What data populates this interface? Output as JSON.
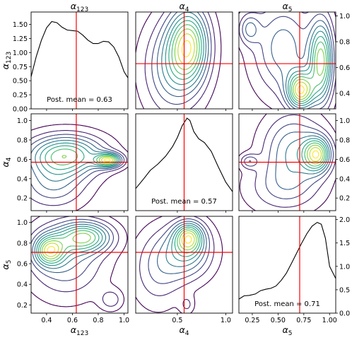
{
  "chart_data": {
    "type": "corner_plot",
    "parameters": [
      {
        "key": "a123",
        "symbol": "α",
        "sub": "123",
        "range": [
          0.28,
          1.03
        ],
        "xticks": [
          0.4,
          0.6,
          0.8,
          1.0
        ],
        "xtick_labels": [
          "0.4",
          "0.6",
          "0.8",
          "1.0"
        ]
      },
      {
        "key": "a4",
        "symbol": "α",
        "sub": "4",
        "range": [
          0.07,
          1.07
        ],
        "xticks": [
          0.5,
          1.0
        ],
        "xtick_labels": [
          "0.5",
          "1.0"
        ]
      },
      {
        "key": "a5",
        "symbol": "α",
        "sub": "5",
        "range": [
          0.12,
          1.06
        ],
        "xticks": [
          0.25,
          0.5,
          0.75,
          1.0
        ],
        "xtick_labels": [
          "0.25",
          "0.50",
          "0.75",
          "1.00"
        ]
      }
    ],
    "posterior_means": [
      0.63,
      0.57,
      0.71
    ],
    "annotations": [
      "Post. mean = 0.63",
      "Post. mean = 0.57",
      "Post. mean = 0.71"
    ],
    "diagonal_density": [
      {
        "ylim": [
          0,
          1.72
        ],
        "yticks": [
          "0.00",
          "0.25",
          "0.50",
          "0.75",
          "1.00",
          "1.25",
          "1.50"
        ],
        "ytick_values": [
          0,
          0.25,
          0.5,
          0.75,
          1.0,
          1.25,
          1.5
        ],
        "x": [
          0.28,
          0.32,
          0.36,
          0.4,
          0.44,
          0.48,
          0.52,
          0.56,
          0.6,
          0.64,
          0.68,
          0.72,
          0.76,
          0.8,
          0.84,
          0.88,
          0.92,
          0.96,
          1.0,
          1.03
        ],
        "y": [
          0.57,
          0.93,
          1.22,
          1.44,
          1.55,
          1.53,
          1.45,
          1.4,
          1.39,
          1.38,
          1.31,
          1.22,
          1.16,
          1.16,
          1.2,
          1.19,
          1.1,
          0.92,
          0.66,
          0.55
        ]
      },
      {
        "ylim": [
          0,
          2.45
        ],
        "yticks": [],
        "ytick_values": [],
        "x": [
          0.07,
          0.15,
          0.22,
          0.3,
          0.38,
          0.45,
          0.5,
          0.55,
          0.6,
          0.63,
          0.67,
          0.72,
          0.78,
          0.85,
          0.92,
          1.0,
          1.07
        ],
        "y": [
          0.56,
          0.8,
          1.02,
          1.18,
          1.38,
          1.62,
          1.85,
          2.15,
          2.34,
          2.28,
          2.0,
          1.82,
          1.72,
          1.5,
          1.12,
          0.72,
          0.48
        ]
      },
      {
        "ylim": [
          0,
          2.07
        ],
        "yticks": [
          "0.0",
          "0.5",
          "1.0",
          "1.5",
          "2.0"
        ],
        "ytick_values": [
          0,
          0.5,
          1.0,
          1.5,
          2.0
        ],
        "x": [
          0.12,
          0.17,
          0.22,
          0.28,
          0.33,
          0.38,
          0.43,
          0.48,
          0.53,
          0.58,
          0.63,
          0.68,
          0.73,
          0.78,
          0.83,
          0.88,
          0.92,
          0.96,
          1.0,
          1.06
        ],
        "y": [
          0.3,
          0.37,
          0.38,
          0.41,
          0.48,
          0.51,
          0.53,
          0.58,
          0.7,
          0.85,
          1.06,
          1.28,
          1.5,
          1.7,
          1.86,
          1.94,
          1.9,
          1.6,
          1.0,
          0.74
        ]
      }
    ],
    "pairs": [
      {
        "row": 0,
        "col": 1,
        "peaks": [
          {
            "x": 0.58,
            "y": 1.4,
            "h": 1.0,
            "sx": 0.07,
            "sy": 0.1
          },
          {
            "x": 0.62,
            "y": 0.78,
            "h": 0.85,
            "sx": 0.14,
            "sy": 0.2
          },
          {
            "x": 0.45,
            "y": 0.6,
            "h": 0.45,
            "sx": 0.2,
            "sy": 0.25
          }
        ]
      },
      {
        "row": 0,
        "col": 2,
        "peaks": [
          {
            "x": 0.72,
            "y": 0.42,
            "h": 1.0,
            "sx": 0.09,
            "sy": 0.1
          },
          {
            "x": 0.92,
            "y": 0.65,
            "h": 0.9,
            "sx": 0.08,
            "sy": 0.22
          },
          {
            "x": 0.55,
            "y": 0.75,
            "h": 0.45,
            "sx": 0.2,
            "sy": 0.25
          },
          {
            "x": 0.22,
            "y": 0.9,
            "h": 0.35,
            "sx": 0.07,
            "sy": 0.08
          }
        ]
      },
      {
        "row": 1,
        "col": 0,
        "peaks": [
          {
            "x": 0.88,
            "y": 0.59,
            "h": 1.0,
            "sx": 0.07,
            "sy": 0.05
          },
          {
            "x": 0.55,
            "y": 0.65,
            "h": 0.85,
            "sx": 0.2,
            "sy": 0.14
          },
          {
            "x": 0.45,
            "y": 0.35,
            "h": 0.4,
            "sx": 0.18,
            "sy": 0.18
          }
        ]
      },
      {
        "row": 1,
        "col": 2,
        "peaks": [
          {
            "x": 0.88,
            "y": 0.65,
            "h": 1.0,
            "sx": 0.09,
            "sy": 0.12
          },
          {
            "x": 0.65,
            "y": 0.7,
            "h": 0.55,
            "sx": 0.2,
            "sy": 0.25
          },
          {
            "x": 0.22,
            "y": 0.58,
            "h": 0.35,
            "sx": 0.06,
            "sy": 0.05
          },
          {
            "x": 0.55,
            "y": 0.3,
            "h": 0.3,
            "sx": 0.25,
            "sy": 0.18
          }
        ]
      },
      {
        "row": 2,
        "col": 0,
        "peaks": [
          {
            "x": 0.42,
            "y": 0.73,
            "h": 1.0,
            "sx": 0.08,
            "sy": 0.1
          },
          {
            "x": 0.7,
            "y": 0.86,
            "h": 0.95,
            "sx": 0.14,
            "sy": 0.1
          },
          {
            "x": 0.55,
            "y": 0.65,
            "h": 0.5,
            "sx": 0.2,
            "sy": 0.25
          },
          {
            "x": 0.9,
            "y": 0.25,
            "h": 0.3,
            "sx": 0.06,
            "sy": 0.07
          }
        ]
      },
      {
        "row": 2,
        "col": 1,
        "peaks": [
          {
            "x": 0.62,
            "y": 0.86,
            "h": 1.0,
            "sx": 0.1,
            "sy": 0.1
          },
          {
            "x": 0.6,
            "y": 0.72,
            "h": 0.75,
            "sx": 0.18,
            "sy": 0.18
          },
          {
            "x": 0.3,
            "y": 0.55,
            "h": 0.4,
            "sx": 0.18,
            "sy": 0.25
          },
          {
            "x": 0.6,
            "y": 0.2,
            "h": 0.25,
            "sx": 0.05,
            "sy": 0.06
          }
        ]
      }
    ],
    "contour_levels": 11,
    "colormap": [
      "#440154",
      "#472d7b",
      "#3b528b",
      "#2c728e",
      "#21918c",
      "#28ae80",
      "#5ec962",
      "#addc30",
      "#fde725"
    ],
    "line_color": "#000000",
    "mean_line_color": "#ff0000"
  }
}
